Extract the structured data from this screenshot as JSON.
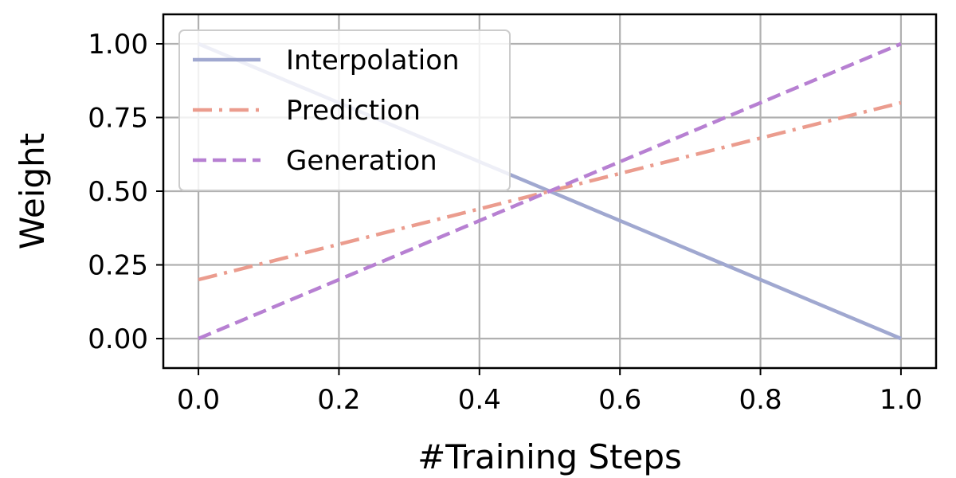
{
  "chart_data": {
    "type": "line",
    "title": "",
    "xlabel": "#Training Steps",
    "ylabel": "Weight",
    "xlim": [
      -0.05,
      1.05
    ],
    "ylim": [
      -0.1,
      1.1
    ],
    "xticks": [
      0.0,
      0.2,
      0.4,
      0.6,
      0.8,
      1.0
    ],
    "xtick_labels": [
      "0.0",
      "0.2",
      "0.4",
      "0.6",
      "0.8",
      "1.0"
    ],
    "yticks": [
      0.0,
      0.25,
      0.5,
      0.75,
      1.0
    ],
    "ytick_labels": [
      "0.00",
      "0.25",
      "0.50",
      "0.75",
      "1.00"
    ],
    "grid": true,
    "legend_position": "top-left",
    "series": [
      {
        "name": "Interpolation",
        "x": [
          0.0,
          1.0
        ],
        "y": [
          1.0,
          0.0
        ],
        "color": "#a0a8d0",
        "style": "solid"
      },
      {
        "name": "Prediction",
        "x": [
          0.0,
          1.0
        ],
        "y": [
          0.2,
          0.8
        ],
        "color": "#eb9c8e",
        "style": "dashdot"
      },
      {
        "name": "Generation",
        "x": [
          0.0,
          1.0
        ],
        "y": [
          0.0,
          1.0
        ],
        "color": "#b780d2",
        "style": "dashed"
      }
    ]
  }
}
